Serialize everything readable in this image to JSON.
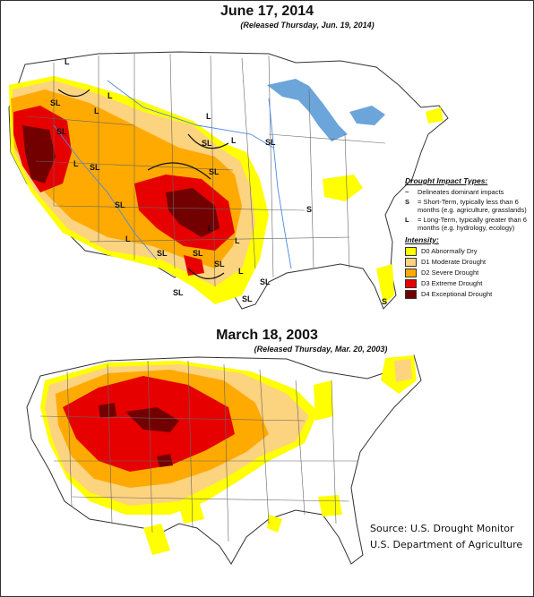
{
  "map_top": {
    "title": "June 17, 2014",
    "subtitle": "(Released Thursday, Jun. 19, 2014)",
    "impact_labels": [
      "L",
      "SL",
      "L",
      "L",
      "SL",
      "L",
      "SL",
      "L",
      "SL",
      "SL",
      "SL",
      "SL",
      "L",
      "SL",
      "SL",
      "L",
      "L",
      "SL",
      "L",
      "SL",
      "SL",
      "SL",
      "L",
      "S",
      "S"
    ]
  },
  "legend": {
    "impact_header": "Drought Impact Types:",
    "items": [
      {
        "glyph": "~",
        "text": "Delineates dominant impacts"
      },
      {
        "glyph": "S",
        "text": "= Short-Term, typically less than 6 months (e.g. agriculture, grasslands)"
      },
      {
        "glyph": "L",
        "text": "= Long-Term, typically greater than 6 months (e.g. hydrology, ecology)"
      }
    ],
    "intensity_header": "Intensity:",
    "intensity": [
      {
        "label": "D0 Abnormally Dry",
        "color": "#ffff00"
      },
      {
        "label": "D1 Moderate Drought",
        "color": "#fcd37f"
      },
      {
        "label": "D2 Severe Drought",
        "color": "#ffaa00"
      },
      {
        "label": "D3 Extreme Drought",
        "color": "#e60000"
      },
      {
        "label": "D4 Exceptional Drought",
        "color": "#730000"
      }
    ]
  },
  "map_bottom": {
    "title": "March 18, 2003",
    "subtitle": "(Released Thursday, Mar. 20, 2003)"
  },
  "source": {
    "line1": "Source: U.S. Drought Monitor",
    "line2": "U.S. Department of Agriculture"
  },
  "colors": {
    "d0": "#ffff00",
    "d1": "#fcd37f",
    "d2": "#ffaa00",
    "d3": "#e60000",
    "d4": "#730000",
    "water": "#5b9bd5",
    "rivers": "#4a86e8",
    "borders": "#333333"
  }
}
